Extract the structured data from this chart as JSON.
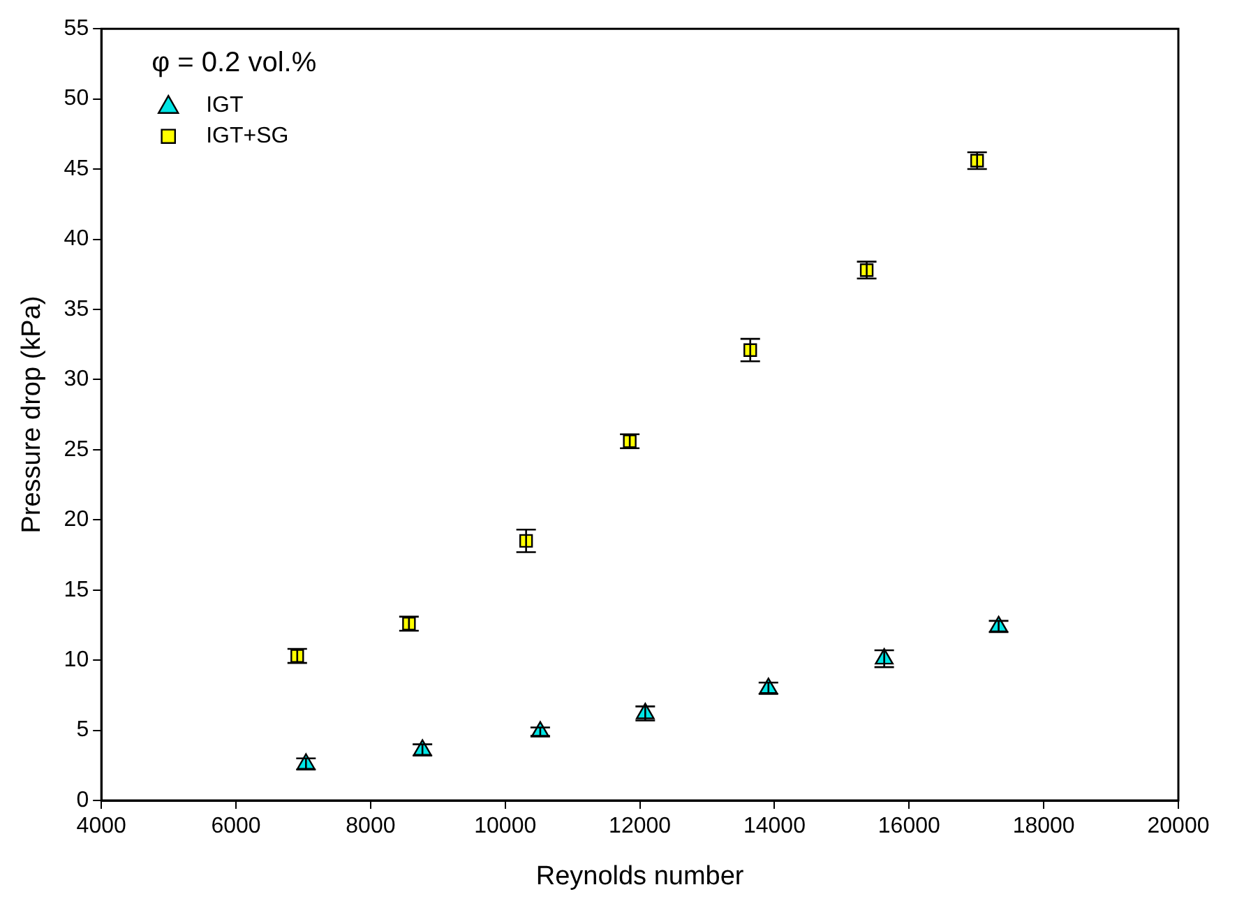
{
  "chart_data": {
    "type": "scatter",
    "xlabel": "Reynolds number",
    "ylabel": "Pressure drop (kPa)",
    "legend_title": "φ = 0.2 vol.%",
    "legend": "top left",
    "grid": false,
    "xlim": [
      4000,
      20000
    ],
    "xticks": [
      4000,
      6000,
      8000,
      10000,
      12000,
      14000,
      16000,
      18000,
      20000
    ],
    "ylim": [
      0,
      55
    ],
    "yticks": [
      0,
      5,
      10,
      15,
      20,
      25,
      30,
      35,
      40,
      45,
      50,
      55
    ],
    "series": [
      {
        "name": "IGT",
        "color": "#00e5e5",
        "marker": "triangle",
        "x": [
          7040,
          8770,
          10520,
          12080,
          13910,
          15630,
          17330
        ],
        "values": [
          2.6,
          3.6,
          4.9,
          6.2,
          8.0,
          10.1,
          12.4
        ],
        "errors": [
          0.4,
          0.4,
          0.3,
          0.5,
          0.4,
          0.6,
          0.4
        ]
      },
      {
        "name": "IGT+SG",
        "color": "#ffff00",
        "marker": "square",
        "x": [
          6910,
          8570,
          10310,
          11850,
          13640,
          15370,
          17010
        ],
        "values": [
          10.3,
          12.6,
          18.5,
          25.6,
          32.1,
          37.8,
          45.6
        ],
        "errors": [
          0.5,
          0.5,
          0.8,
          0.5,
          0.8,
          0.6,
          0.6
        ]
      }
    ]
  }
}
